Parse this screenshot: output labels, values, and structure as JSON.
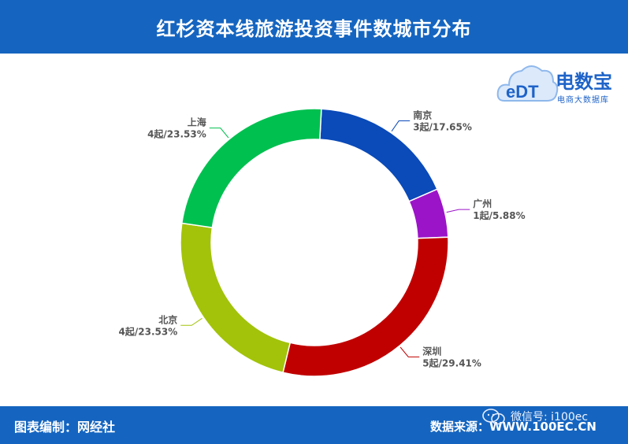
{
  "header": {
    "title": "红杉资本线旅游投资事件数城市分布"
  },
  "logo": {
    "brand": "电数宝",
    "sub": "电商大数据库",
    "mark": "eDT"
  },
  "footer": {
    "credit": "图表编制：网经社",
    "source": "数据来源：WWW.100EC.CN",
    "wechat": "微信号: i100ec"
  },
  "colors": {
    "南京": "#0a4ab9",
    "广州": "#9b14c8",
    "深圳": "#c00000",
    "北京": "#a2c30a",
    "上海": "#00c050",
    "header_bg": "#1565c0"
  },
  "chart_data": {
    "type": "pie",
    "variant": "donut",
    "categories": [
      "南京",
      "广州",
      "深圳",
      "北京",
      "上海"
    ],
    "values": [
      3,
      1,
      5,
      4,
      4
    ],
    "labels": [
      "3起/17.65%",
      "1起/5.88%",
      "5起/29.41%",
      "4起/23.53%",
      "4起/23.53%"
    ]
  }
}
